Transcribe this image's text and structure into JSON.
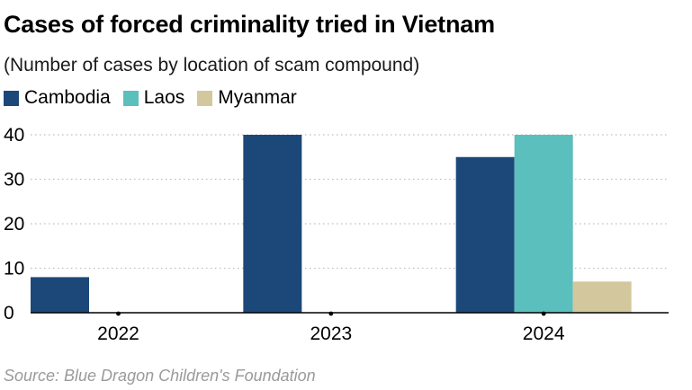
{
  "chart_data": {
    "type": "bar",
    "title": "Cases of forced criminality tried in Vietnam",
    "subtitle": "(Number of cases by location of scam compound)",
    "categories": [
      "2022",
      "2023",
      "2024"
    ],
    "series": [
      {
        "name": "Cambodia",
        "color": "#1b4879",
        "values": [
          8,
          40,
          35
        ]
      },
      {
        "name": "Laos",
        "color": "#5bbfbd",
        "values": [
          0,
          0,
          40
        ]
      },
      {
        "name": "Myanmar",
        "color": "#d3c79d",
        "values": [
          0,
          0,
          7
        ]
      }
    ],
    "ylim": [
      0,
      40
    ],
    "yticks": [
      "0",
      "10",
      "20",
      "30",
      "40"
    ],
    "grid": "horizontal-dotted",
    "legend_position": "top-left",
    "source": "Source: Blue Dragon Children's Foundation"
  }
}
